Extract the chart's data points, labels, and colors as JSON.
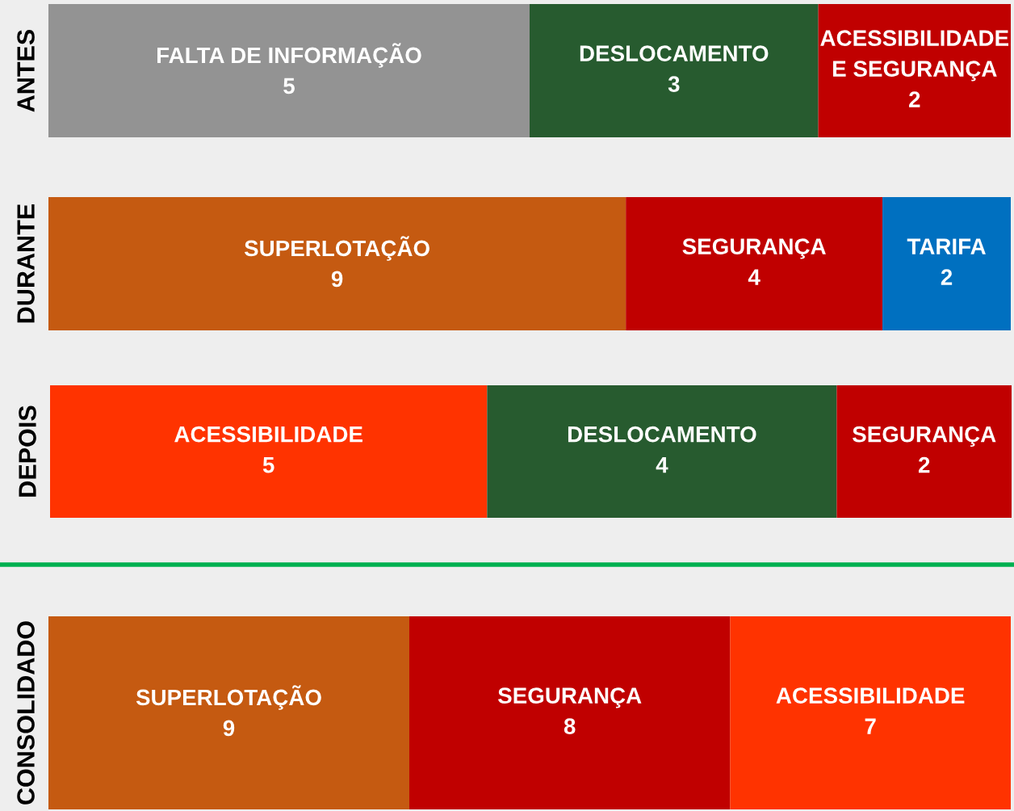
{
  "chart_data": [
    {
      "type": "bar",
      "orientation": "horizontal",
      "stacked": true,
      "categories": [
        "ANTES"
      ],
      "xlim": [
        0,
        10
      ],
      "tick_labels": "y",
      "data_labels": true,
      "legend": false,
      "grid": false,
      "series": [
        {
          "name": "FALTA DE INFORMAÇÃO",
          "color": "#939393",
          "values": [
            5
          ]
        },
        {
          "name": "DESLOCAMENTO",
          "color": "#275b2f",
          "values": [
            3
          ]
        },
        {
          "name": "ACESSIBILIDADE E SEGURANÇA",
          "color": "#c00000",
          "values": [
            2
          ]
        }
      ]
    },
    {
      "type": "bar",
      "orientation": "horizontal",
      "stacked": true,
      "categories": [
        "DURANTE"
      ],
      "xlim": [
        0,
        15
      ],
      "tick_labels": "y",
      "data_labels": true,
      "legend": false,
      "grid": false,
      "series": [
        {
          "name": "SUPERLOTAÇÃO",
          "color": "#c55a11",
          "values": [
            9
          ]
        },
        {
          "name": "SEGURANÇA",
          "color": "#c00000",
          "values": [
            4
          ]
        },
        {
          "name": "TARIFA",
          "color": "#0070c0",
          "values": [
            2
          ]
        }
      ]
    },
    {
      "type": "bar",
      "orientation": "horizontal",
      "stacked": true,
      "categories": [
        "DEPOIS"
      ],
      "xlim": [
        0,
        11
      ],
      "tick_labels": "y",
      "data_labels": true,
      "legend": false,
      "grid": false,
      "series": [
        {
          "name": "ACESSIBILIDADE",
          "color": "#ff3300",
          "values": [
            5
          ]
        },
        {
          "name": "DESLOCAMENTO",
          "color": "#275b2f",
          "values": [
            4
          ]
        },
        {
          "name": "SEGURANÇA",
          "color": "#c00000",
          "values": [
            2
          ]
        }
      ]
    },
    {
      "type": "bar",
      "orientation": "horizontal",
      "stacked": true,
      "categories": [
        "CONSOLIDADO"
      ],
      "xlim": [
        0,
        24
      ],
      "tick_labels": "y",
      "data_labels": true,
      "legend": false,
      "grid": false,
      "series": [
        {
          "name": "SUPERLOTAÇÃO",
          "color": "#c55a11",
          "values": [
            9
          ]
        },
        {
          "name": "SEGURANÇA",
          "color": "#c00000",
          "values": [
            8
          ]
        },
        {
          "name": "ACESSIBILIDADE",
          "color": "#ff3300",
          "values": [
            7
          ]
        }
      ]
    }
  ]
}
